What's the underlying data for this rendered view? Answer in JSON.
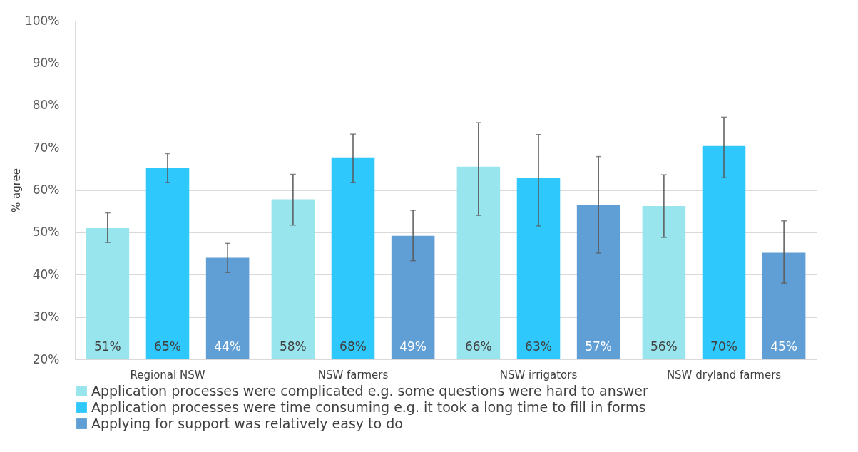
{
  "chart_data": {
    "type": "bar",
    "ylabel": "% agree",
    "categories": [
      "Regional NSW",
      "NSW farmers",
      "NSW irrigators",
      "NSW dryland farmers"
    ],
    "series": [
      {
        "name": "Application processes were complicated e.g. some questions were hard to answer",
        "color": "#99e5ed",
        "values": [
          51.0,
          57.8,
          65.5,
          56.2
        ],
        "errors": [
          [
            47.6,
            54.6
          ],
          [
            51.7,
            63.7
          ],
          [
            54.0,
            75.9
          ],
          [
            48.8,
            63.6
          ]
        ],
        "value_labels": [
          "51%",
          "58%",
          "66%",
          "56%"
        ]
      },
      {
        "name": "Application processes were time consuming e.g. it took a long time to fill in forms",
        "color": "#2fc8fd",
        "values": [
          65.3,
          67.7,
          62.9,
          70.4
        ],
        "errors": [
          [
            61.8,
            68.6
          ],
          [
            61.8,
            73.2
          ],
          [
            51.5,
            73.1
          ],
          [
            62.9,
            77.2
          ]
        ],
        "value_labels": [
          "65%",
          "68%",
          "63%",
          "70%"
        ]
      },
      {
        "name": "Applying for support was relatively easy to do",
        "color": "#609ed6",
        "values": [
          44.0,
          49.2,
          56.5,
          45.2
        ],
        "errors": [
          [
            40.5,
            47.4
          ],
          [
            43.3,
            55.2
          ],
          [
            45.1,
            67.9
          ],
          [
            38.0,
            52.7
          ]
        ],
        "value_labels": [
          "44%",
          "49%",
          "57%",
          "45%"
        ]
      }
    ],
    "ylim": [
      20,
      100
    ],
    "yticks": [
      {
        "value": 20,
        "label": "20%"
      },
      {
        "value": 30,
        "label": "30%"
      },
      {
        "value": 40,
        "label": "40%"
      },
      {
        "value": 50,
        "label": "50%"
      },
      {
        "value": 60,
        "label": "60%"
      },
      {
        "value": 70,
        "label": "70%"
      },
      {
        "value": 80,
        "label": "80%"
      },
      {
        "value": 90,
        "label": "90%"
      },
      {
        "value": 100,
        "label": "100%"
      }
    ],
    "grid": "y",
    "legend": "bottom"
  }
}
